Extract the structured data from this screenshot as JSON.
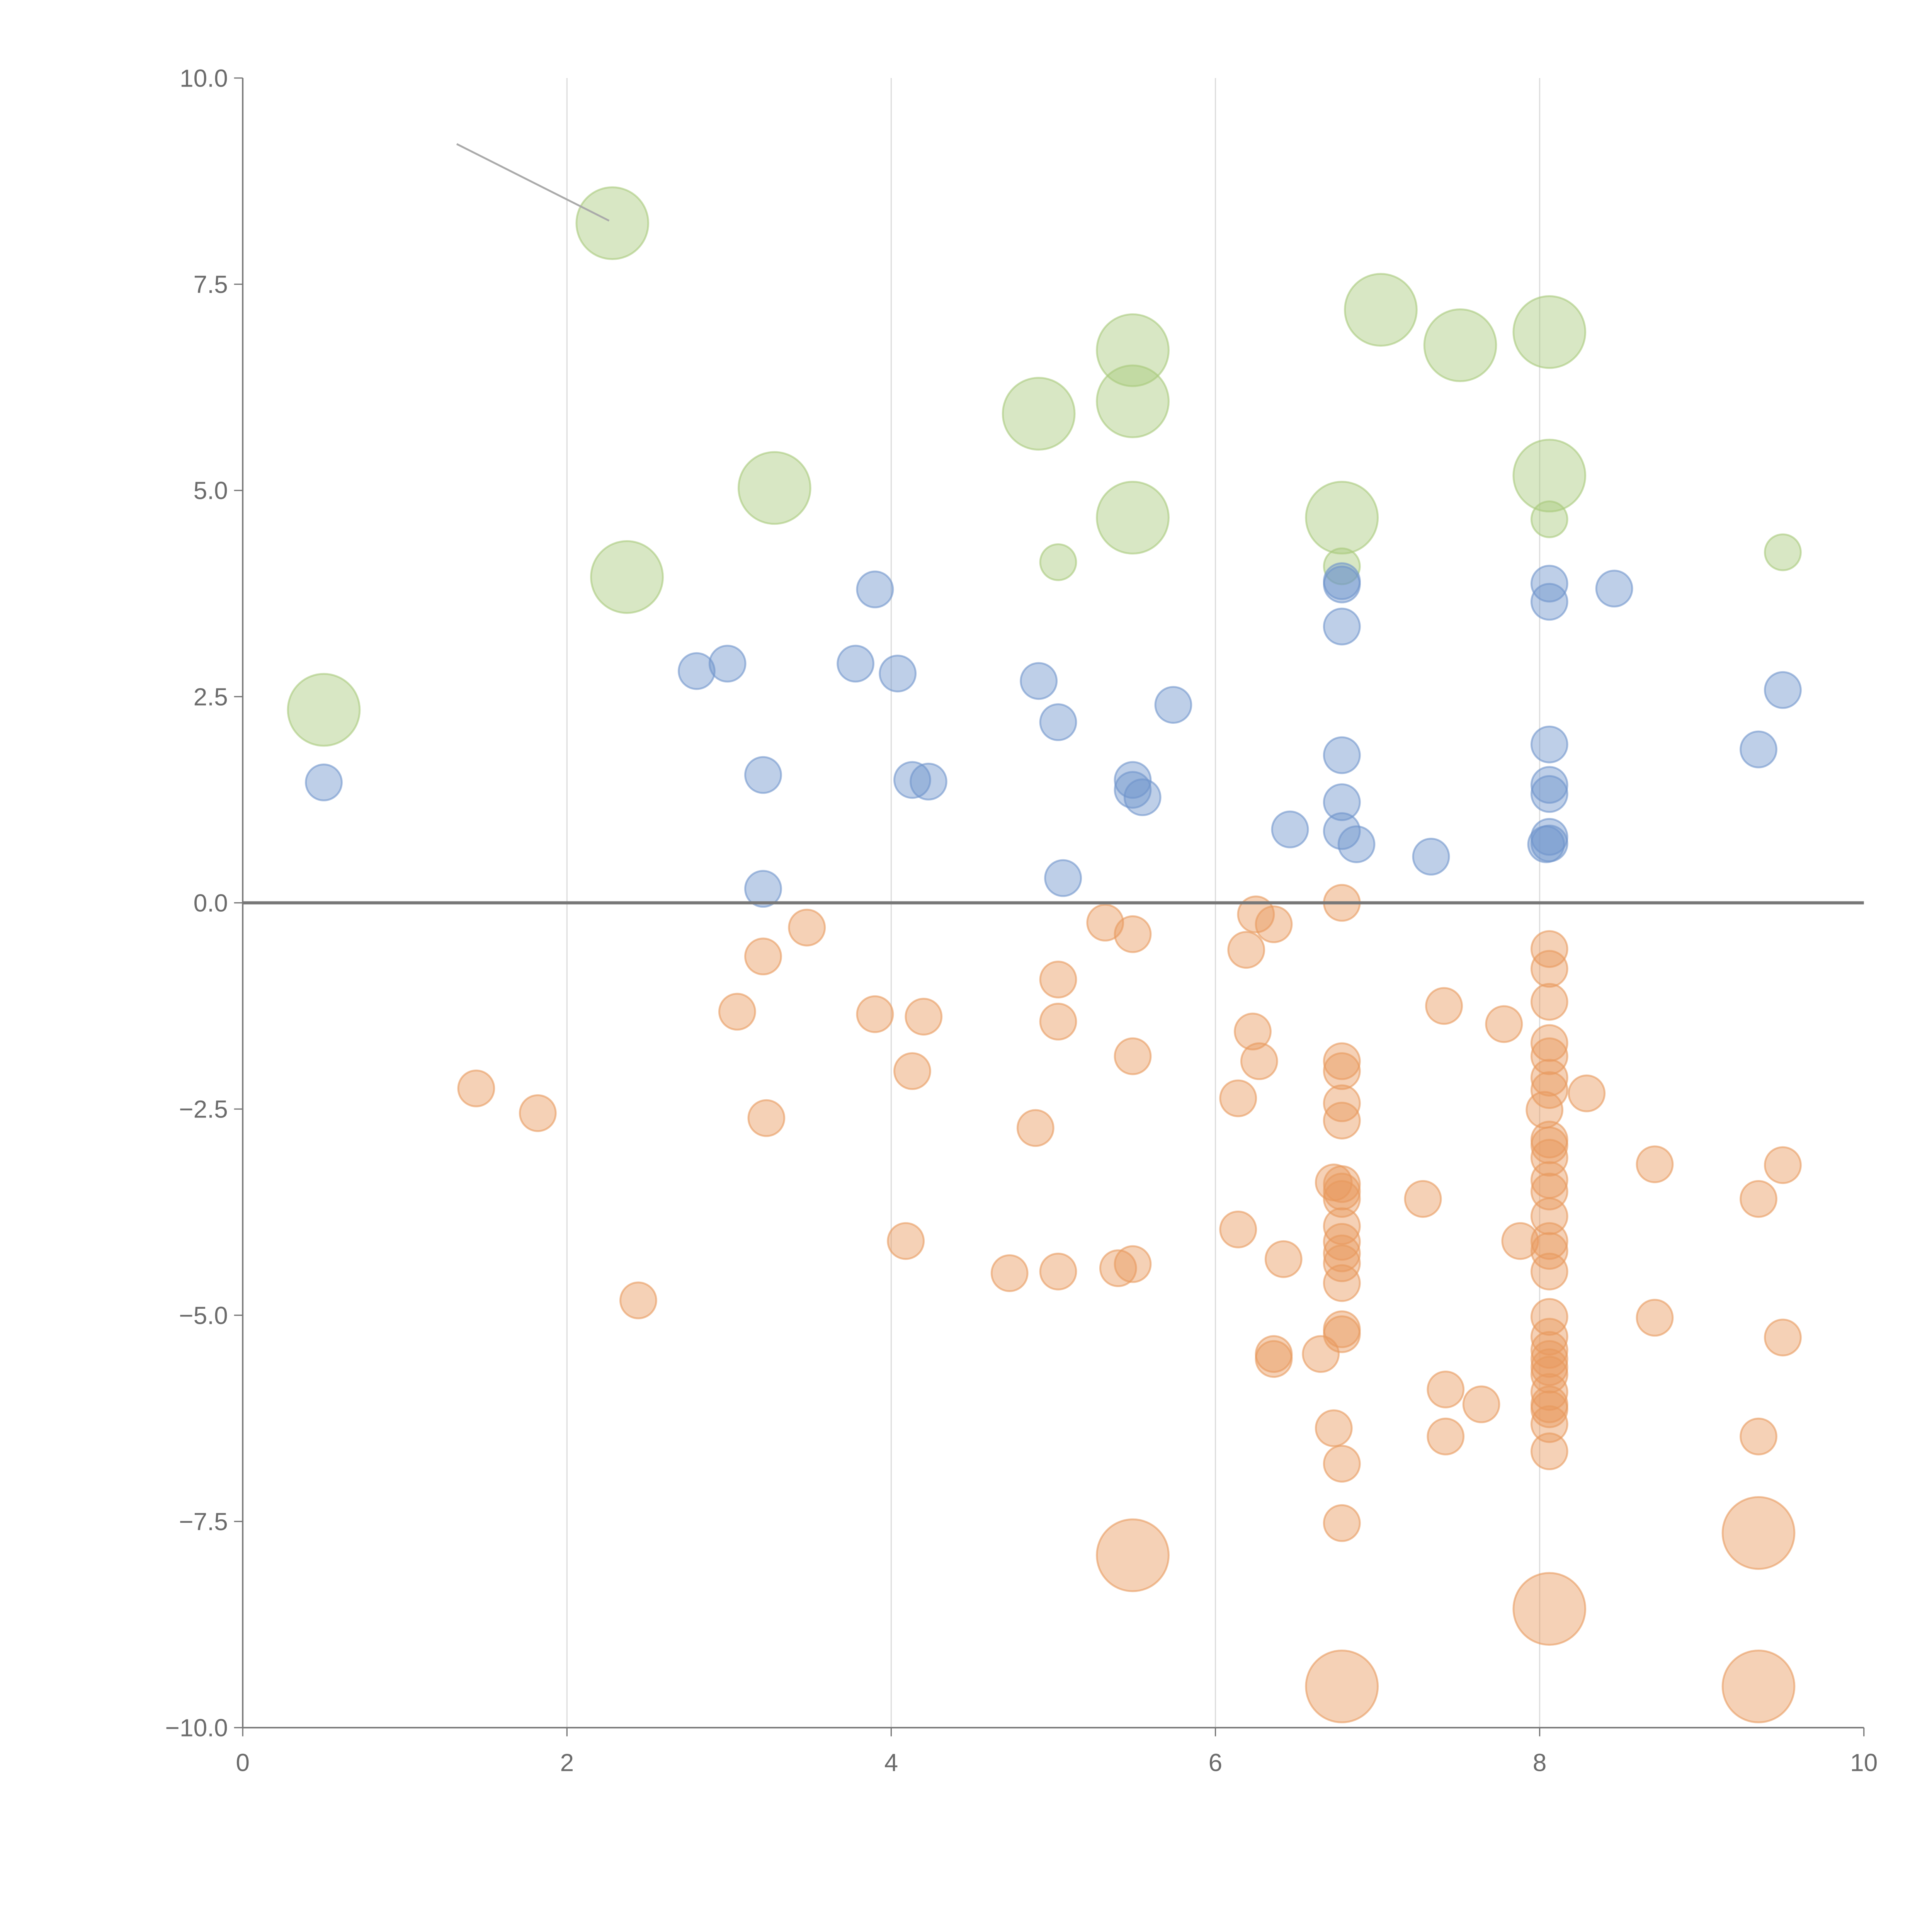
{
  "chart_data": {
    "type": "scatter",
    "title": "",
    "xlabel": "",
    "ylabel": "",
    "xlim": [
      0,
      10
    ],
    "ylim": [
      -10,
      10
    ],
    "xticks": [
      "0",
      "2",
      "4",
      "6",
      "8",
      "10"
    ],
    "xtick_values": [
      0,
      2,
      4,
      6,
      8,
      10
    ],
    "yticks": [
      "10.0",
      "7.5",
      "5.0",
      "2.5",
      "0.0",
      "−2.5",
      "−5.0",
      "−7.5",
      "−10.0"
    ],
    "ytick_values": [
      10,
      7.5,
      5,
      2.5,
      0,
      -2.5,
      -5,
      -7.5,
      -10
    ],
    "vertical_gridlines_at": [
      2,
      4,
      6,
      8
    ],
    "reference_line_y": 0,
    "annotation_line": {
      "from": [
        1.32,
        9.2
      ],
      "to": [
        2.26,
        8.27
      ]
    },
    "series": [
      {
        "name": "green",
        "color": "#a9c97c",
        "points": [
          [
            2.28,
            8.24,
            4
          ],
          [
            0.5,
            2.34,
            4
          ],
          [
            2.37,
            3.95,
            4
          ],
          [
            3.28,
            5.03,
            4
          ],
          [
            4.91,
            5.93,
            4
          ],
          [
            5.49,
            6.7,
            4
          ],
          [
            5.49,
            6.08,
            4
          ],
          [
            5.49,
            4.67,
            4
          ],
          [
            7.02,
            7.19,
            4
          ],
          [
            7.51,
            6.76,
            4
          ],
          [
            8.06,
            6.92,
            4
          ],
          [
            8.06,
            5.18,
            4
          ],
          [
            6.78,
            4.67,
            4
          ],
          [
            5.03,
            4.13,
            1
          ],
          [
            6.78,
            4.08,
            1
          ],
          [
            8.06,
            4.65,
            1
          ],
          [
            9.5,
            4.25,
            1
          ]
        ]
      },
      {
        "name": "blue",
        "color": "#6f95cc",
        "points": [
          [
            0.5,
            1.46,
            1
          ],
          [
            2.8,
            2.81,
            1
          ],
          [
            2.99,
            2.9,
            1
          ],
          [
            3.21,
            1.55,
            1
          ],
          [
            3.21,
            0.17,
            1
          ],
          [
            3.78,
            2.9,
            1
          ],
          [
            3.9,
            3.8,
            1
          ],
          [
            4.04,
            2.78,
            1
          ],
          [
            4.13,
            1.49,
            1
          ],
          [
            4.23,
            1.47,
            1
          ],
          [
            4.91,
            2.69,
            1
          ],
          [
            5.03,
            2.19,
            1
          ],
          [
            5.06,
            0.3,
            1
          ],
          [
            5.49,
            1.49,
            1
          ],
          [
            5.49,
            1.37,
            1
          ],
          [
            5.55,
            1.28,
            1
          ],
          [
            5.74,
            2.4,
            1
          ],
          [
            6.46,
            0.89,
            1
          ],
          [
            6.78,
            3.9,
            1
          ],
          [
            6.78,
            3.86,
            1
          ],
          [
            6.78,
            3.35,
            1
          ],
          [
            6.78,
            1.79,
            1
          ],
          [
            6.78,
            1.22,
            1
          ],
          [
            6.78,
            0.87,
            1
          ],
          [
            6.87,
            0.71,
            1
          ],
          [
            7.33,
            0.56,
            1
          ],
          [
            8.06,
            3.87,
            1
          ],
          [
            8.06,
            3.65,
            1
          ],
          [
            8.06,
            1.92,
            1
          ],
          [
            8.06,
            1.43,
            1
          ],
          [
            8.06,
            1.32,
            1
          ],
          [
            8.06,
            0.8,
            1
          ],
          [
            8.06,
            0.72,
            1
          ],
          [
            8.04,
            0.71,
            1
          ],
          [
            8.46,
            3.81,
            1
          ],
          [
            9.35,
            1.86,
            1
          ],
          [
            9.5,
            2.58,
            1
          ]
        ]
      },
      {
        "name": "orange",
        "color": "#e89a5e",
        "points": [
          [
            1.44,
            -2.25,
            1
          ],
          [
            1.82,
            -2.55,
            1
          ],
          [
            2.44,
            -4.82,
            1
          ],
          [
            3.05,
            -1.32,
            1
          ],
          [
            3.21,
            -0.65,
            1
          ],
          [
            3.23,
            -2.61,
            1
          ],
          [
            3.48,
            -0.3,
            1
          ],
          [
            3.9,
            -1.35,
            1
          ],
          [
            4.2,
            -1.38,
            1
          ],
          [
            4.13,
            -2.04,
            1
          ],
          [
            4.09,
            -4.1,
            1
          ],
          [
            4.73,
            -4.49,
            1
          ],
          [
            4.89,
            -2.73,
            1
          ],
          [
            5.03,
            -0.93,
            1
          ],
          [
            5.03,
            -1.44,
            1
          ],
          [
            5.03,
            -4.47,
            1
          ],
          [
            5.32,
            -0.24,
            1
          ],
          [
            5.49,
            -0.38,
            1
          ],
          [
            5.49,
            -1.86,
            1
          ],
          [
            5.4,
            -4.43,
            1
          ],
          [
            5.49,
            -4.38,
            1
          ],
          [
            6.14,
            -2.37,
            1
          ],
          [
            6.14,
            -3.96,
            1
          ],
          [
            6.19,
            -0.57,
            1
          ],
          [
            6.25,
            -0.14,
            1
          ],
          [
            6.36,
            -0.26,
            1
          ],
          [
            6.23,
            -1.56,
            1
          ],
          [
            6.27,
            -1.92,
            1
          ],
          [
            6.42,
            -4.32,
            1
          ],
          [
            6.36,
            -5.47,
            1
          ],
          [
            6.36,
            -5.53,
            1
          ],
          [
            6.65,
            -5.47,
            1
          ],
          [
            6.73,
            -6.37,
            1
          ],
          [
            6.73,
            -3.39,
            1
          ],
          [
            6.78,
            0.0,
            1
          ],
          [
            6.78,
            -1.92,
            1
          ],
          [
            6.78,
            -2.04,
            1
          ],
          [
            6.78,
            -2.43,
            1
          ],
          [
            6.78,
            -2.64,
            1
          ],
          [
            6.78,
            -3.41,
            1
          ],
          [
            6.78,
            -3.5,
            1
          ],
          [
            6.78,
            -3.59,
            1
          ],
          [
            6.78,
            -3.92,
            1
          ],
          [
            6.78,
            -4.11,
            1
          ],
          [
            6.78,
            -4.25,
            1
          ],
          [
            6.78,
            -4.37,
            1
          ],
          [
            6.78,
            -4.61,
            1
          ],
          [
            6.78,
            -5.17,
            1
          ],
          [
            6.78,
            -5.23,
            1
          ],
          [
            6.78,
            -6.8,
            1
          ],
          [
            6.78,
            -7.52,
            1
          ],
          [
            7.28,
            -3.59,
            1
          ],
          [
            7.41,
            -1.25,
            1
          ],
          [
            7.42,
            -5.9,
            1
          ],
          [
            7.42,
            -6.47,
            1
          ],
          [
            7.64,
            -6.08,
            1
          ],
          [
            7.78,
            -1.47,
            1
          ],
          [
            7.88,
            -4.1,
            1
          ],
          [
            8.03,
            -2.51,
            1
          ],
          [
            8.29,
            -2.31,
            1
          ],
          [
            8.06,
            -0.56,
            1
          ],
          [
            8.06,
            -0.8,
            1
          ],
          [
            8.06,
            -1.2,
            1
          ],
          [
            8.06,
            -1.7,
            1
          ],
          [
            8.06,
            -1.86,
            1
          ],
          [
            8.06,
            -2.12,
            1
          ],
          [
            8.06,
            -2.27,
            1
          ],
          [
            8.06,
            -2.87,
            1
          ],
          [
            8.06,
            -2.94,
            1
          ],
          [
            8.06,
            -3.09,
            1
          ],
          [
            8.06,
            -3.36,
            1
          ],
          [
            8.06,
            -3.5,
            1
          ],
          [
            8.06,
            -3.8,
            1
          ],
          [
            8.06,
            -4.1,
            1
          ],
          [
            8.06,
            -4.22,
            1
          ],
          [
            8.06,
            -4.47,
            1
          ],
          [
            8.06,
            -5.02,
            1
          ],
          [
            8.06,
            -5.26,
            1
          ],
          [
            8.06,
            -5.42,
            1
          ],
          [
            8.06,
            -5.53,
            1
          ],
          [
            8.06,
            -5.63,
            1
          ],
          [
            8.06,
            -5.72,
            1
          ],
          [
            8.06,
            -5.93,
            1
          ],
          [
            8.06,
            -6.08,
            1
          ],
          [
            8.06,
            -6.14,
            1
          ],
          [
            8.06,
            -6.32,
            1
          ],
          [
            8.06,
            -6.65,
            1
          ],
          [
            8.71,
            -3.17,
            1
          ],
          [
            8.71,
            -5.03,
            1
          ],
          [
            9.35,
            -3.59,
            1
          ],
          [
            9.35,
            -6.47,
            1
          ],
          [
            9.5,
            -3.18,
            1
          ],
          [
            9.5,
            -5.27,
            1
          ],
          [
            5.49,
            -7.91,
            4
          ],
          [
            6.78,
            -9.5,
            4
          ],
          [
            8.06,
            -8.56,
            4
          ],
          [
            9.35,
            -7.64,
            4
          ],
          [
            9.35,
            -9.5,
            4
          ]
        ]
      }
    ]
  }
}
